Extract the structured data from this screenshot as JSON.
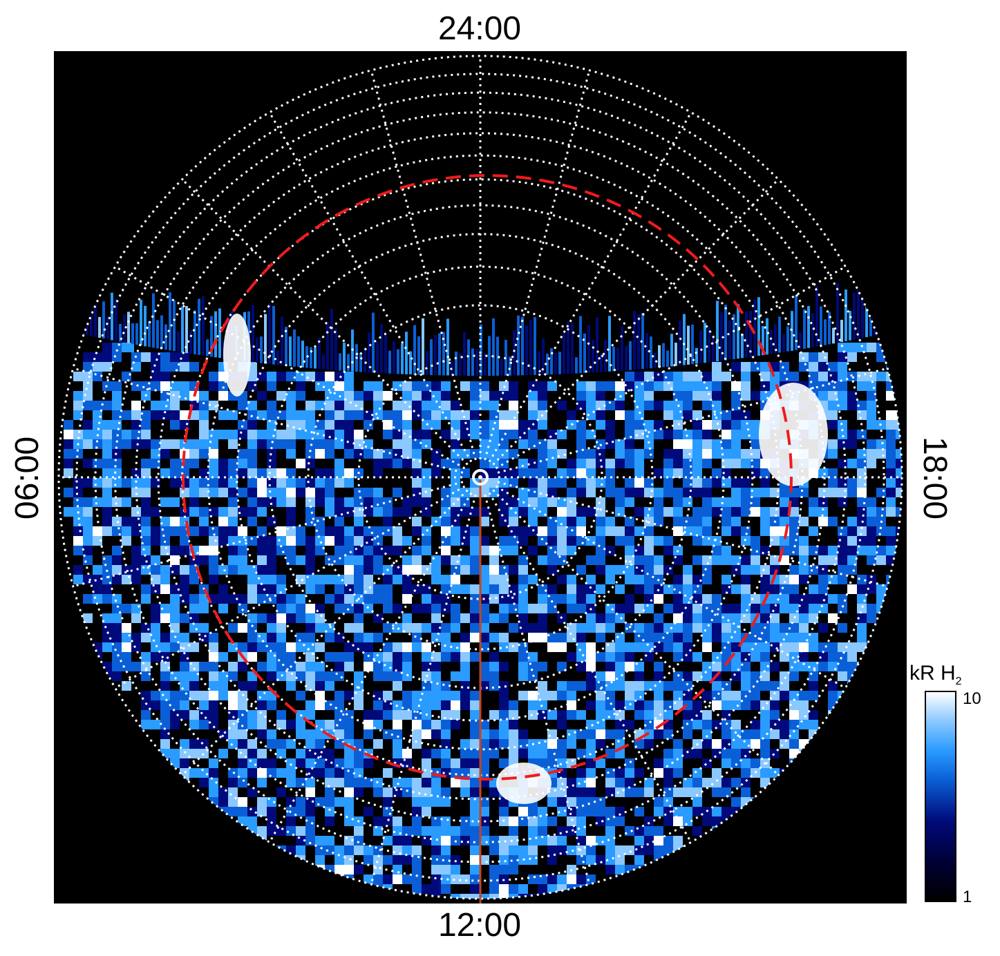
{
  "local_time_labels": {
    "top": "24:00",
    "bottom": "12:00",
    "left": "06:00",
    "right": "18:00"
  },
  "colorbar": {
    "title": "kR H",
    "title_subscript": "2",
    "max_label": "10",
    "min_label": "1",
    "scale": "log",
    "colors": [
      "#000000",
      "#000033",
      "#000a7a",
      "#0a5fd6",
      "#2a9bff",
      "#8ac8ff",
      "#ffffff"
    ]
  },
  "map": {
    "projection": "polar",
    "background": "#000000",
    "grid_color": "#ffffff",
    "grid_style": "dotted",
    "grid_latitude_rings": 12,
    "grid_longitude_spokes": 24,
    "reference_oval_color": "#ee1c1c",
    "reference_oval_style": "dashed",
    "noon_meridian_color": "#c8441a",
    "emission_colormap": "black-blue-white",
    "coverage": "dayside (toward 12:00) plus partial nightside"
  }
}
